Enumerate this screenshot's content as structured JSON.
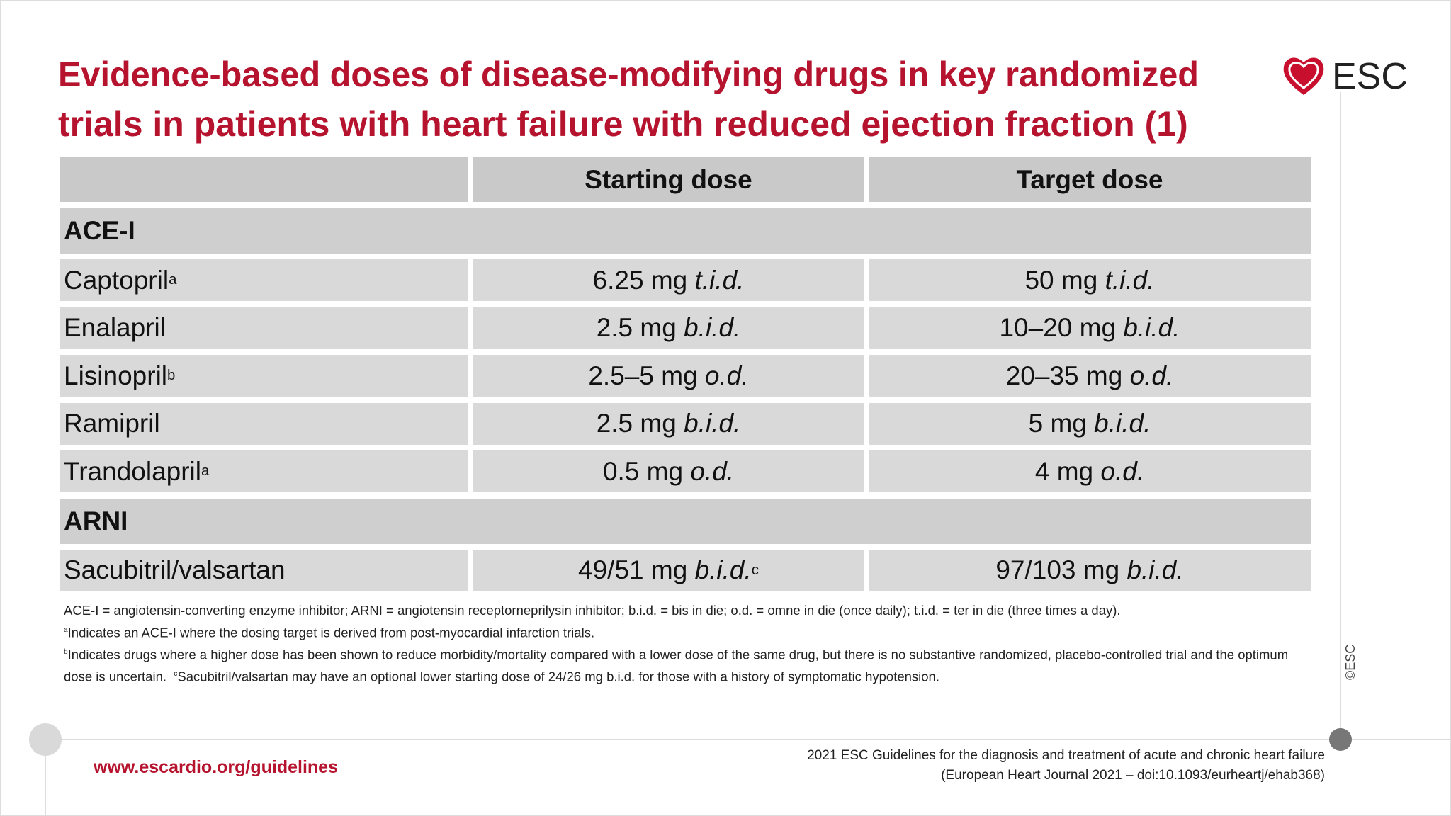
{
  "header": {
    "title_lines": [
      "Evidence-based doses of disease-modifying drugs in key randomized",
      "trials in patients with heart failure with reduced ejection fraction (1)"
    ],
    "logo": "ESC"
  },
  "table": {
    "columns": [
      "Starting dose",
      "Target dose"
    ],
    "sections": [
      {
        "name": "ACE-I",
        "rows": [
          {
            "drug": "Captopril",
            "note": "a",
            "start": {
              "amount": "6.25 mg",
              "freq": "t.i.d."
            },
            "target": {
              "amount": "50 mg",
              "freq": "t.i.d."
            }
          },
          {
            "drug": "Enalapril",
            "start": {
              "amount": "2.5 mg",
              "freq": "b.i.d."
            },
            "target": {
              "amount": "10–20 mg",
              "freq": "b.i.d."
            }
          },
          {
            "drug": "Lisinopril",
            "note": "b",
            "start": {
              "amount": "2.5–5 mg",
              "freq": "o.d."
            },
            "target": {
              "amount": "20–35 mg",
              "freq": "o.d."
            }
          },
          {
            "drug": "Ramipril",
            "start": {
              "amount": "2.5 mg",
              "freq": "b.i.d."
            },
            "target": {
              "amount": "5 mg",
              "freq": "b.i.d."
            }
          },
          {
            "drug": "Trandolapril",
            "note": "a",
            "start": {
              "amount": "0.5 mg",
              "freq": "o.d."
            },
            "target": {
              "amount": "4 mg",
              "freq": "o.d."
            }
          }
        ]
      },
      {
        "name": "ARNI",
        "rows": [
          {
            "drug": "Sacubitril/valsartan",
            "start": {
              "amount": "49/51 mg",
              "freq": "b.i.d.",
              "note": "c"
            },
            "target": {
              "amount": "97/103 mg",
              "freq": "b.i.d."
            }
          }
        ]
      }
    ]
  },
  "footnotes": {
    "abbreviations": "ACE-I = angiotensin-converting enzyme inhibitor; ARNI = angiotensin receptorneprilysin inhibitor; b.i.d. = bis in die; o.d. = omne in die (once daily); t.i.d. = ter in die (three times a day).",
    "notes": [
      {
        "mark": "a",
        "text": "Indicates an ACE-I where the dosing target is derived from post-myocardial infarction trials."
      },
      {
        "mark": "b",
        "text": "Indicates drugs where a higher dose has been shown to reduce morbidity/mortality compared with a lower dose of the same drug, but there is no substantive randomized, placebo-controlled trial and the optimum dose is uncertain."
      },
      {
        "mark": "c",
        "text": "Sacubitril/valsartan may have an optional lower starting dose of 24/26 mg b.i.d. for those with a history of symptomatic hypotension."
      }
    ]
  },
  "footer": {
    "url": "www.escardio.org/guidelines",
    "citation_lines": [
      "2021 ESC Guidelines for the diagnosis and treatment of acute and chronic heart failure",
      "(European Heart Journal 2021 – doi:10.1093/eurheartj/ehab368)"
    ],
    "copyright": "©ESC"
  }
}
